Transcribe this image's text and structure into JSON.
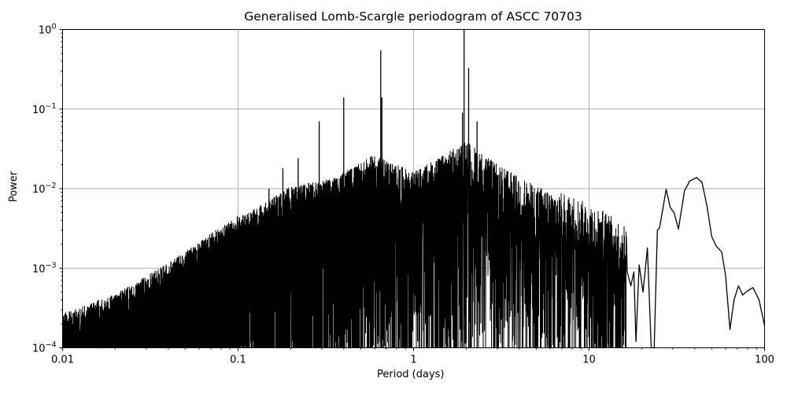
{
  "chart_data": {
    "type": "line",
    "title": "Generalised Lomb-Scargle periodogram of ASCC 70703",
    "xlabel": "Period (days)",
    "ylabel": "Power",
    "xscale": "log",
    "yscale": "log",
    "xlim": [
      0.01,
      100
    ],
    "ylim": [
      0.0001,
      1
    ],
    "grid": true,
    "legend": null,
    "xticks": [
      "0.01",
      "0.1",
      "1",
      "10",
      "100"
    ],
    "yticks": [
      {
        "base": "10",
        "exp": "0"
      },
      {
        "base": "10",
        "exp": "−1"
      },
      {
        "base": "10",
        "exp": "−2"
      },
      {
        "base": "10",
        "exp": "−3"
      },
      {
        "base": "10",
        "exp": "−4"
      }
    ],
    "line_color": "#000000",
    "grid_color": "#b0b0b0",
    "notable_peaks": [
      {
        "period": 1.94,
        "power": 1.0
      },
      {
        "period": 2.06,
        "power": 0.33
      },
      {
        "period": 0.65,
        "power": 0.55
      },
      {
        "period": 0.4,
        "power": 0.14
      },
      {
        "period": 0.66,
        "power": 0.14
      },
      {
        "period": 0.29,
        "power": 0.07
      },
      {
        "period": 0.22,
        "power": 0.024
      },
      {
        "period": 0.18,
        "power": 0.018
      },
      {
        "period": 0.15,
        "power": 0.01
      },
      {
        "period": 1.9,
        "power": 0.09
      },
      {
        "period": 2.3,
        "power": 0.07
      },
      {
        "period": 0.099,
        "power": 0.0045
      },
      {
        "period": 0.016,
        "power": 0.0004
      }
    ],
    "envelope": [
      {
        "period": 0.01,
        "power": 0.0002
      },
      {
        "period": 0.02,
        "power": 0.00035
      },
      {
        "period": 0.03,
        "power": 0.0006
      },
      {
        "period": 0.05,
        "power": 0.0012
      },
      {
        "period": 0.08,
        "power": 0.0025
      },
      {
        "period": 0.12,
        "power": 0.004
      },
      {
        "period": 0.2,
        "power": 0.008
      },
      {
        "period": 0.35,
        "power": 0.01
      },
      {
        "period": 0.6,
        "power": 0.02
      },
      {
        "period": 1.0,
        "power": 0.012
      },
      {
        "period": 1.5,
        "power": 0.02
      },
      {
        "period": 2.0,
        "power": 0.03
      },
      {
        "period": 3.0,
        "power": 0.015
      },
      {
        "period": 5.0,
        "power": 0.008
      },
      {
        "period": 8.0,
        "power": 0.006
      },
      {
        "period": 12.0,
        "power": 0.004
      },
      {
        "period": 16.0,
        "power": 0.0025
      }
    ],
    "long_period_curve": [
      {
        "period": 16.5,
        "power": 0.0009
      },
      {
        "period": 17.3,
        "power": 0.0006
      },
      {
        "period": 18.0,
        "power": 0.0009
      },
      {
        "period": 18.5,
        "power": 0.00012
      },
      {
        "period": 19.3,
        "power": 0.0011
      },
      {
        "period": 20.3,
        "power": 0.0005
      },
      {
        "period": 21.5,
        "power": 0.0018
      },
      {
        "period": 22.6,
        "power": 0.0001
      },
      {
        "period": 23.5,
        "power": 0.0001
      },
      {
        "period": 24.5,
        "power": 0.003
      },
      {
        "period": 25.2,
        "power": 0.0032
      },
      {
        "period": 26.3,
        "power": 0.0055
      },
      {
        "period": 27.5,
        "power": 0.0098
      },
      {
        "period": 29.0,
        "power": 0.0058
      },
      {
        "period": 30.5,
        "power": 0.005
      },
      {
        "period": 32.3,
        "power": 0.0031
      },
      {
        "period": 35.0,
        "power": 0.0095
      },
      {
        "period": 37.5,
        "power": 0.0125
      },
      {
        "period": 41.0,
        "power": 0.0138
      },
      {
        "period": 44.0,
        "power": 0.012
      },
      {
        "period": 47.0,
        "power": 0.006
      },
      {
        "period": 50.0,
        "power": 0.0025
      },
      {
        "period": 53.0,
        "power": 0.0019
      },
      {
        "period": 57.0,
        "power": 0.0016
      },
      {
        "period": 60.0,
        "power": 0.0008
      },
      {
        "period": 63.5,
        "power": 0.00017
      },
      {
        "period": 67.0,
        "power": 0.0004
      },
      {
        "period": 71.0,
        "power": 0.0006
      },
      {
        "period": 75.0,
        "power": 0.00046
      },
      {
        "period": 80.0,
        "power": 0.00052
      },
      {
        "period": 86.0,
        "power": 0.00057
      },
      {
        "period": 93.0,
        "power": 0.0004
      },
      {
        "period": 100.0,
        "power": 0.00019
      }
    ]
  }
}
